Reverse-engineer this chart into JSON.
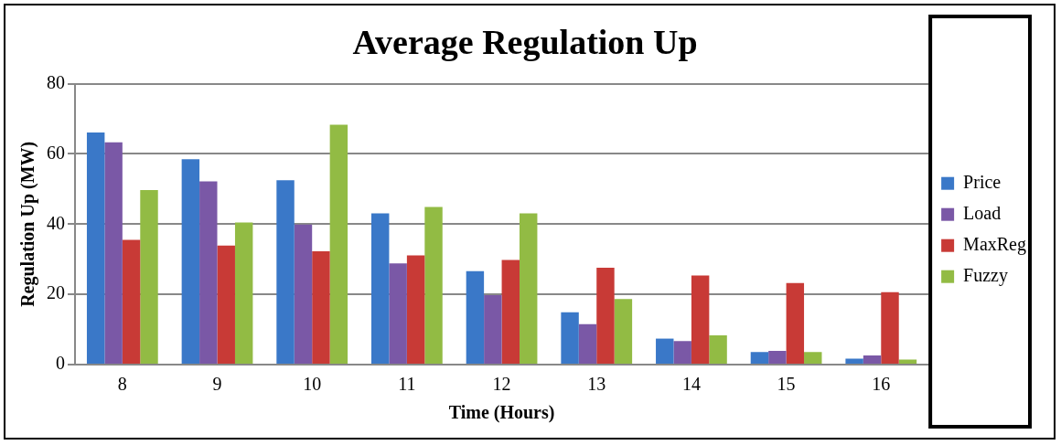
{
  "chart_data": {
    "type": "bar",
    "title": "Average Regulation Up",
    "xlabel": "Time (Hours)",
    "ylabel": "Regulation Up (MW)",
    "categories": [
      "8",
      "9",
      "10",
      "11",
      "12",
      "13",
      "14",
      "15",
      "16"
    ],
    "series": [
      {
        "name": "Price",
        "color": "#3a78c8",
        "values": [
          66.1,
          58.5,
          52.5,
          43.1,
          26.6,
          14.9,
          7.4,
          3.6,
          1.7
        ]
      },
      {
        "name": "Load",
        "color": "#7a58a6",
        "values": [
          63.3,
          52.2,
          39.9,
          28.8,
          19.8,
          11.5,
          6.7,
          3.9,
          2.6
        ]
      },
      {
        "name": "MaxReg",
        "color": "#c83a36",
        "values": [
          35.5,
          33.9,
          32.3,
          31.1,
          29.8,
          27.6,
          25.4,
          23.2,
          20.6
        ]
      },
      {
        "name": "Fuzzy",
        "color": "#92bb44",
        "values": [
          49.7,
          40.5,
          68.3,
          44.9,
          43.1,
          18.7,
          8.3,
          3.6,
          1.4
        ]
      }
    ],
    "ylim": [
      0,
      80
    ],
    "yticks": [
      0,
      20,
      40,
      60,
      80
    ],
    "grid": "y",
    "legend": "right"
  }
}
